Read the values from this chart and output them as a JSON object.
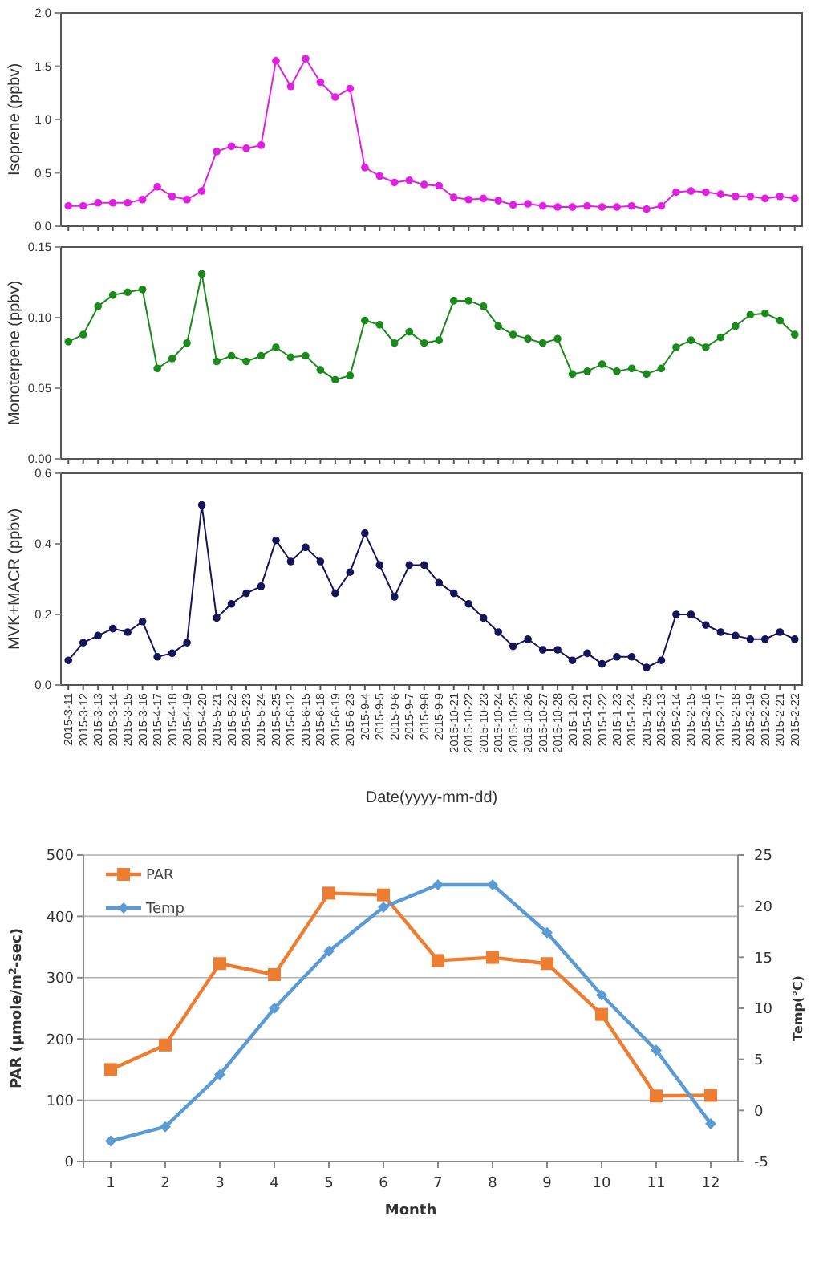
{
  "chart_data": [
    {
      "type": "line",
      "ylabel": "Isoprene (ppbv)",
      "categories": [
        "2015-3-11",
        "2015-3-12",
        "2015-3-13",
        "2015-3-14",
        "2015-3-15",
        "2015-3-16",
        "2015-4-17",
        "2015-4-18",
        "2015-4-19",
        "2015-4-20",
        "2015-5-21",
        "2015-5-22",
        "2015-5-23",
        "2015-5-24",
        "2015-5-25",
        "2015-6-12",
        "2015-6-15",
        "2015-6-18",
        "2015-6-19",
        "2015-6-23",
        "2015-9-4",
        "2015-9-5",
        "2015-9-6",
        "2015-9-7",
        "2015-9-8",
        "2015-9-9",
        "2015-10-21",
        "2015-10-22",
        "2015-10-23",
        "2015-10-24",
        "2015-10-25",
        "2015-10-26",
        "2015-10-27",
        "2015-10-28",
        "2015-1-20",
        "2015-1-21",
        "2015-1-22",
        "2015-1-23",
        "2015-1-24",
        "2015-1-25",
        "2015-2-13",
        "2015-2-14",
        "2015-2-15",
        "2015-2-16",
        "2015-2-17",
        "2015-2-18",
        "2015-2-19",
        "2015-2-20",
        "2015-2-21",
        "2015-2-22"
      ],
      "series": [
        {
          "color": "#e020e0",
          "values": [
            0.19,
            0.19,
            0.22,
            0.22,
            0.22,
            0.25,
            0.37,
            0.28,
            0.25,
            0.33,
            0.7,
            0.75,
            0.73,
            0.76,
            1.55,
            1.31,
            1.57,
            1.35,
            1.21,
            1.29,
            0.55,
            0.47,
            0.41,
            0.43,
            0.39,
            0.38,
            0.27,
            0.25,
            0.26,
            0.24,
            0.2,
            0.21,
            0.19,
            0.18,
            0.18,
            0.19,
            0.18,
            0.18,
            0.19,
            0.16,
            0.19,
            0.32,
            0.33,
            0.32,
            0.3,
            0.28,
            0.28,
            0.26,
            0.28,
            0.26
          ]
        }
      ],
      "ylim": [
        0,
        2
      ],
      "yticks": [
        {
          "value": 0,
          "label": "0.0"
        },
        {
          "value": 0.5,
          "label": "0.5"
        },
        {
          "value": 1,
          "label": "1.0"
        },
        {
          "value": 1.5,
          "label": "1.5"
        },
        {
          "value": 2,
          "label": "2.0"
        }
      ],
      "tick_labels": "y",
      "marker": "circle",
      "grid": false,
      "legend": false
    },
    {
      "type": "line",
      "ylabel": "Monoterpene (ppbv)",
      "categories": [
        "2015-3-11",
        "2015-3-12",
        "2015-3-13",
        "2015-3-14",
        "2015-3-15",
        "2015-3-16",
        "2015-4-17",
        "2015-4-18",
        "2015-4-19",
        "2015-4-20",
        "2015-5-21",
        "2015-5-22",
        "2015-5-23",
        "2015-5-24",
        "2015-5-25",
        "2015-6-12",
        "2015-6-15",
        "2015-6-18",
        "2015-6-19",
        "2015-6-23",
        "2015-9-4",
        "2015-9-5",
        "2015-9-6",
        "2015-9-7",
        "2015-9-8",
        "2015-9-9",
        "2015-10-21",
        "2015-10-22",
        "2015-10-23",
        "2015-10-24",
        "2015-10-25",
        "2015-10-26",
        "2015-10-27",
        "2015-10-28",
        "2015-1-20",
        "2015-1-21",
        "2015-1-22",
        "2015-1-23",
        "2015-1-24",
        "2015-1-25",
        "2015-2-13",
        "2015-2-14",
        "2015-2-15",
        "2015-2-16",
        "2015-2-17",
        "2015-2-18",
        "2015-2-19",
        "2015-2-20",
        "2015-2-21",
        "2015-2-22"
      ],
      "series": [
        {
          "color": "#1a8a1a",
          "values": [
            0.083,
            0.088,
            0.108,
            0.116,
            0.118,
            0.12,
            0.064,
            0.071,
            0.082,
            0.131,
            0.069,
            0.073,
            0.069,
            0.073,
            0.079,
            0.072,
            0.073,
            0.063,
            0.056,
            0.059,
            0.098,
            0.095,
            0.082,
            0.09,
            0.082,
            0.084,
            0.112,
            0.112,
            0.108,
            0.094,
            0.088,
            0.085,
            0.082,
            0.085,
            0.06,
            0.062,
            0.067,
            0.062,
            0.064,
            0.06,
            0.064,
            0.079,
            0.084,
            0.079,
            0.086,
            0.094,
            0.102,
            0.103,
            0.098,
            0.088
          ]
        }
      ],
      "ylim": [
        0,
        0.15
      ],
      "yticks": [
        {
          "value": 0,
          "label": "0.00"
        },
        {
          "value": 0.05,
          "label": "0.05"
        },
        {
          "value": 0.1,
          "label": "0.10"
        },
        {
          "value": 0.15,
          "label": "0.15"
        }
      ],
      "tick_labels": "y",
      "marker": "circle",
      "grid": false,
      "legend": false
    },
    {
      "type": "line",
      "xlabel": "Date(yyyy-mm-dd)",
      "ylabel": "MVK+MACR (ppbv)",
      "categories": [
        "2015-3-11",
        "2015-3-12",
        "2015-3-13",
        "2015-3-14",
        "2015-3-15",
        "2015-3-16",
        "2015-4-17",
        "2015-4-18",
        "2015-4-19",
        "2015-4-20",
        "2015-5-21",
        "2015-5-22",
        "2015-5-23",
        "2015-5-24",
        "2015-5-25",
        "2015-6-12",
        "2015-6-15",
        "2015-6-18",
        "2015-6-19",
        "2015-6-23",
        "2015-9-4",
        "2015-9-5",
        "2015-9-6",
        "2015-9-7",
        "2015-9-8",
        "2015-9-9",
        "2015-10-21",
        "2015-10-22",
        "2015-10-23",
        "2015-10-24",
        "2015-10-25",
        "2015-10-26",
        "2015-10-27",
        "2015-10-28",
        "2015-1-20",
        "2015-1-21",
        "2015-1-22",
        "2015-1-23",
        "2015-1-24",
        "2015-1-25",
        "2015-2-13",
        "2015-2-14",
        "2015-2-15",
        "2015-2-16",
        "2015-2-17",
        "2015-2-18",
        "2015-2-19",
        "2015-2-20",
        "2015-2-21",
        "2015-2-22"
      ],
      "series": [
        {
          "color": "#14145a",
          "values": [
            0.07,
            0.12,
            0.14,
            0.16,
            0.15,
            0.18,
            0.08,
            0.09,
            0.12,
            0.51,
            0.19,
            0.23,
            0.26,
            0.28,
            0.41,
            0.35,
            0.39,
            0.35,
            0.26,
            0.32,
            0.43,
            0.34,
            0.25,
            0.34,
            0.34,
            0.29,
            0.26,
            0.23,
            0.19,
            0.15,
            0.11,
            0.13,
            0.1,
            0.1,
            0.07,
            0.09,
            0.06,
            0.08,
            0.08,
            0.05,
            0.07,
            0.2,
            0.2,
            0.17,
            0.15,
            0.14,
            0.13,
            0.13,
            0.15,
            0.13
          ]
        }
      ],
      "ylim": [
        0,
        0.6
      ],
      "yticks": [
        {
          "value": 0,
          "label": "0.0"
        },
        {
          "value": 0.2,
          "label": "0.2"
        },
        {
          "value": 0.4,
          "label": "0.4"
        },
        {
          "value": 0.6,
          "label": "0.6"
        }
      ],
      "marker": "circle",
      "grid": false,
      "legend": false
    },
    {
      "type": "line",
      "xlabel": "Month",
      "ylabel": "PAR (μmole/m$^{2}$-sec)",
      "y2label": "Temp(℃)",
      "x": [
        1,
        2,
        3,
        4,
        5,
        6,
        7,
        8,
        9,
        10,
        11,
        12
      ],
      "xlim": [
        0.5,
        12.5
      ],
      "xticks": [
        1,
        2,
        3,
        4,
        5,
        6,
        7,
        8,
        9,
        10,
        11,
        12
      ],
      "series": [
        {
          "name": "PAR",
          "color": "#ed7d31",
          "marker": "square",
          "values": [
            150,
            190,
            323,
            305,
            438,
            435,
            328,
            333,
            323,
            240,
            107,
            108
          ]
        },
        {
          "name": "Temp",
          "color": "#5b9bd5",
          "marker": "diamond",
          "axis": "y2",
          "values": [
            -3.0,
            -1.6,
            3.5,
            10.0,
            15.6,
            19.9,
            22.1,
            22.1,
            17.4,
            11.3,
            5.9,
            -1.3
          ]
        }
      ],
      "ylim": [
        0,
        500
      ],
      "yticks": [
        0,
        100,
        200,
        300,
        400,
        500
      ],
      "y2lim": [
        -5,
        25
      ],
      "y2ticks": [
        -5,
        0,
        5,
        10,
        15,
        20,
        25
      ],
      "grid": "y",
      "legend": "top left"
    }
  ]
}
